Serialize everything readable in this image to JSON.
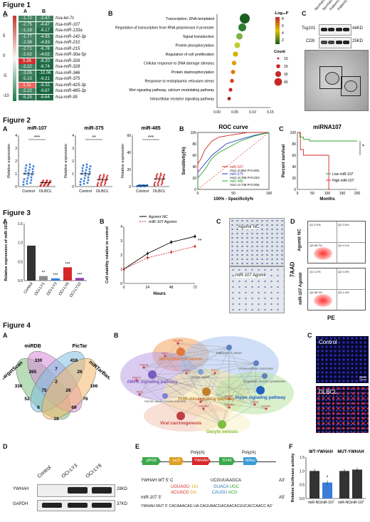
{
  "figure_titles": {
    "f1": "Figure 1",
    "f2": "Figure 2",
    "f3": "Figure 3",
    "f4": "Figure 4"
  },
  "panel_labels": {
    "A": "A",
    "B": "B",
    "C": "C",
    "D": "D",
    "E": "E",
    "F": "F"
  },
  "fig1": {
    "heatmap": {
      "cols": [
        "A",
        "B"
      ],
      "scale_ticks": [
        "10",
        "5",
        "0",
        "-5",
        "-10"
      ],
      "rows": [
        {
          "a": "-1.72",
          "b": "-2.47",
          "name": "hsa-let-7c"
        },
        {
          "a": "-2.75",
          "b": "-4.47",
          "name": "hsa-miR-107"
        },
        {
          "a": "-1.19",
          "b": "-8.17",
          "name": "hsa-miR-133a"
        },
        {
          "a": "-1.77",
          "b": "-4.93",
          "name": "hsa-miR-142-3p"
        },
        {
          "a": "-2.38",
          "b": "-4.93",
          "name": "hsa-miR-210"
        },
        {
          "a": "-2.71",
          "b": "-6.78",
          "name": "hsa-miR-215"
        },
        {
          "a": "-2.02",
          "b": "-4.02",
          "name": "hsa-miR-30a-5p"
        },
        {
          "a": "5.36",
          "b": "-8.20",
          "name": "hsa-miR-326"
        },
        {
          "a": "-2.22",
          "b": "-8.74",
          "name": "hsa-miR-328"
        },
        {
          "a": "-3.05",
          "b": "-10.06",
          "name": "hsa-miR-346"
        },
        {
          "a": "-5.23",
          "b": "-9.21",
          "name": "hsa-miR-375"
        },
        {
          "a": "1.11",
          "b": "-8.32",
          "name": "hsa-miR-425-3p"
        },
        {
          "a": "-2.22",
          "b": "-9.87",
          "name": "hsa-miR-485-3p"
        },
        {
          "a": "-5.29",
          "b": "-8.64",
          "name": "hsa-miR-95"
        }
      ]
    },
    "bubble": {
      "terms": [
        "Transcription, DNA-templated",
        "Regulation of transcription from RNA polymerase II promoter",
        "Signal transduction",
        "Protein phosphorylation",
        "Regulation of cell proliferation",
        "Cellular response to DNA damage stimulus",
        "Protein dephosphorylation",
        "Response to endoplasmic reticulum stress",
        "Wnt signaling pathway, calcium modulating pathway",
        "Intracellular receptor signaling pathway"
      ],
      "rich_factor": [
        0.078,
        0.071,
        0.063,
        0.057,
        0.052,
        0.048,
        0.045,
        0.042,
        0.038,
        0.034
      ],
      "xlabel": "Rich factor",
      "xticks": [
        "0.00",
        "0.05",
        "0.10",
        "0.15"
      ],
      "legend_title": "-Log₁₀P",
      "color_ticks": [
        "8",
        "6",
        "4",
        "2"
      ],
      "count_title": "Count",
      "count_ticks": [
        "10",
        "20",
        "30",
        "40"
      ]
    },
    "blot": {
      "lanes": [
        "Normal1",
        "Normal2",
        "Patient1",
        "Patient2"
      ],
      "proteins": [
        {
          "name": "Tsg101",
          "kd": "44KD"
        },
        {
          "name": "CD9",
          "kd": "25KD"
        }
      ]
    }
  },
  "fig2": {
    "dots": [
      {
        "title": "miR-107",
        "sig": "***",
        "ylabel": "Relative expression",
        "yticks": [
          "0",
          "1",
          "2",
          "3",
          "4"
        ],
        "groups": [
          "Control",
          "DLBCL"
        ],
        "means": [
          1.0,
          0.3
        ]
      },
      {
        "title": "miR-375",
        "sig": "**",
        "ylabel": "Relative expression",
        "yticks": [
          "0",
          "1",
          "2",
          "3",
          "4"
        ],
        "groups": [
          "Control",
          "DLBCL"
        ],
        "means": [
          1.0,
          0.55
        ]
      },
      {
        "title": "miR-485",
        "sig": "***",
        "ylabel": "Relative expression",
        "yticks": [
          "0",
          "20",
          "40",
          "60"
        ],
        "groups": [
          "Control",
          "DLBCL"
        ],
        "means": [
          1.0,
          9.0
        ]
      }
    ],
    "roc": {
      "title": "ROC curve",
      "xlabel": "100% - Specificity%",
      "ylabel": "Sensitivity(%)",
      "ticks": [
        "0",
        "20",
        "40",
        "60",
        "80",
        "100"
      ],
      "xticks": [
        "0",
        "50",
        "100"
      ],
      "series": [
        {
          "name": "miR-107",
          "auc": "AUC=0.854  P<0.001",
          "color": "#d62728"
        },
        {
          "name": "miR-375",
          "auc": "AUC=0.769  P<0.010",
          "color": "#2040c0"
        },
        {
          "name": "miR-485",
          "auc": "AUC=0.739  P<0.005",
          "color": "#2ca02c"
        }
      ]
    },
    "survival": {
      "title": "miRNA107",
      "xlabel": "Months",
      "ylabel": "Percent survival",
      "xticks": [
        "0",
        "50",
        "100",
        "150",
        "200"
      ],
      "yticks": [
        "0",
        "20",
        "40",
        "60",
        "80",
        "100"
      ],
      "legend": [
        "Low miR-107",
        "High miR-107"
      ],
      "sig": "*"
    }
  },
  "fig3": {
    "bar": {
      "ylabel": "Relative expression of miR-107",
      "yticks": [
        "0.0",
        "0.5",
        "1.0",
        "1.5"
      ],
      "categories": [
        "Control",
        "OCI-LY1",
        "OCI-LY3",
        "OCI-LY8",
        "OCI-LY10"
      ],
      "values": [
        0.92,
        0.12,
        0.06,
        0.35,
        0.07
      ],
      "sig": [
        "",
        "**",
        "***",
        "***",
        "***"
      ]
    },
    "growth": {
      "ylabel": "Cell viability relative to control",
      "xlabel": "Hours",
      "x": [
        0,
        24,
        48,
        72
      ],
      "xticks": [
        "0",
        "24",
        "48",
        "72"
      ],
      "yticks": [
        "0",
        "1",
        "2",
        "3",
        "4"
      ],
      "series": [
        {
          "name": "Agomir NC",
          "values": [
            1.0,
            2.1,
            2.9,
            3.3
          ]
        },
        {
          "name": "miR-107 Agomir",
          "values": [
            1.0,
            1.8,
            2.2,
            2.6
          ]
        }
      ],
      "sig": "**"
    },
    "transwell": [
      "Agomir NC",
      "miR-107 Agomir"
    ],
    "flow": {
      "ylabel": "7AAD",
      "xlabel": "PE",
      "rows": [
        "Agomir NC",
        "miR-107 Agomir"
      ],
      "quads": [
        [
          "Q1 0.0%",
          "Q2 0.0%",
          "Q4 95.7%",
          "Q3 4.1%"
        ],
        [
          "Q1 0.2%",
          "Q2 0.0%",
          "Q4 98.1%",
          "Q3 1.4%"
        ]
      ]
    }
  },
  "fig4": {
    "venn": {
      "sets": [
        "TargetScan",
        "miRDB",
        "PicTar",
        "miRTarBase"
      ],
      "numbers": [
        "330",
        "416",
        "166",
        "336",
        "265",
        "7",
        "26",
        "52",
        "2",
        "76",
        "75",
        "26",
        "6",
        "18",
        "69"
      ]
    },
    "network": {
      "pathways": [
        "MicroRNAs in cancer",
        "AMPK signaling pathway",
        "PI3K-Akt signaling pathway",
        "Hippo signaling pathway",
        "Viral carcinogenesis",
        "Oocyte meiosis",
        "Human papillomavirus infection",
        "Pathways in cancer",
        "Hepatocellular carcinoma",
        "Regulation of actin cytoskeleton",
        "Breast cancer"
      ],
      "genes": [
        "DICER1",
        "RAF1",
        "CAB39",
        "RAB10",
        "TBC1",
        "YWHAH",
        "CPNE3",
        "KRAS",
        "PLAG1",
        "YWHAB",
        "LATS2",
        "AJUBA",
        "CRIM1"
      ]
    },
    "if": [
      "Control",
      "DLBCL"
    ],
    "if_scale": "20μm",
    "wb": {
      "lanes": [
        "Control",
        "OCI-LY3",
        "OCI-LY8"
      ],
      "proteins": [
        {
          "name": "YWHAH",
          "kd": "28KD"
        },
        {
          "name": "GAPDH",
          "kd": "37KD"
        }
      ]
    },
    "construct": {
      "elements": [
        "pPGK",
        "luc2",
        "YWHAH",
        "SV40",
        "hRluc"
      ],
      "polyA": "Poly(A)",
      "wt_label": "YWHAH WT 5' C",
      "wt_seq": "UCGUUAAGCA",
      "mir_label": "miR-107 3'",
      "mut_label": "YWHAH MUT 5' CACAAACAG UA CAGUAACGACAACACUUCACCAACC A3'",
      "prime_g": "G",
      "prime_a": "A3'",
      "mir_a": "A5'"
    },
    "luc": {
      "ylabel": "Relative luciferase activity",
      "groups": [
        "WT-YWHAH",
        "MUT-YWHAH"
      ],
      "categories": [
        "miR-NC",
        "miR-107",
        "miR-NC",
        "miR-107"
      ],
      "values": [
        1.0,
        0.58,
        1.0,
        1.05
      ],
      "yticks": [
        "0.0",
        "0.5",
        "1.0",
        "1.5"
      ],
      "sig": "*"
    }
  }
}
